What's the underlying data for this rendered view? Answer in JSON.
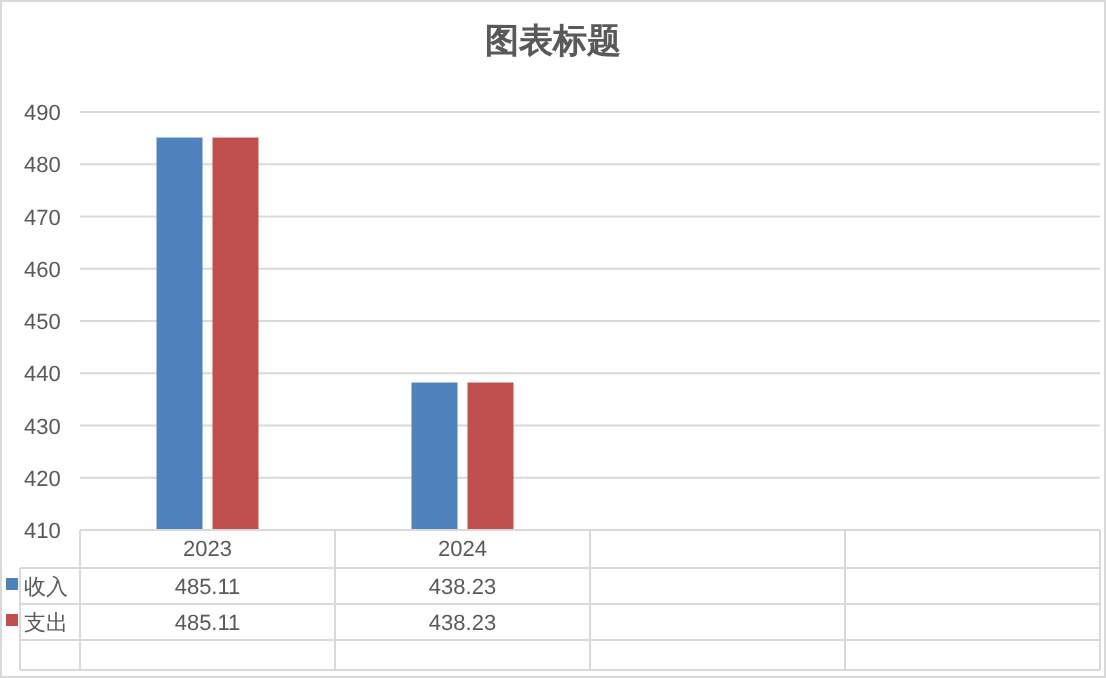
{
  "chart_data": {
    "type": "bar",
    "title": "图表标题",
    "categories": [
      "2023",
      "2024",
      null,
      null
    ],
    "series": [
      {
        "name": "收入",
        "color": "#4f81bd",
        "values": [
          485.11,
          438.23,
          null,
          null
        ]
      },
      {
        "name": "支出",
        "color": "#c0504d",
        "values": [
          485.11,
          438.23,
          null,
          null
        ]
      }
    ],
    "ylim": [
      410,
      490
    ],
    "yticks": [
      410,
      420,
      430,
      440,
      450,
      460,
      470,
      480,
      490
    ],
    "grid": "y",
    "data_labels": true,
    "legend": "bottom left"
  }
}
